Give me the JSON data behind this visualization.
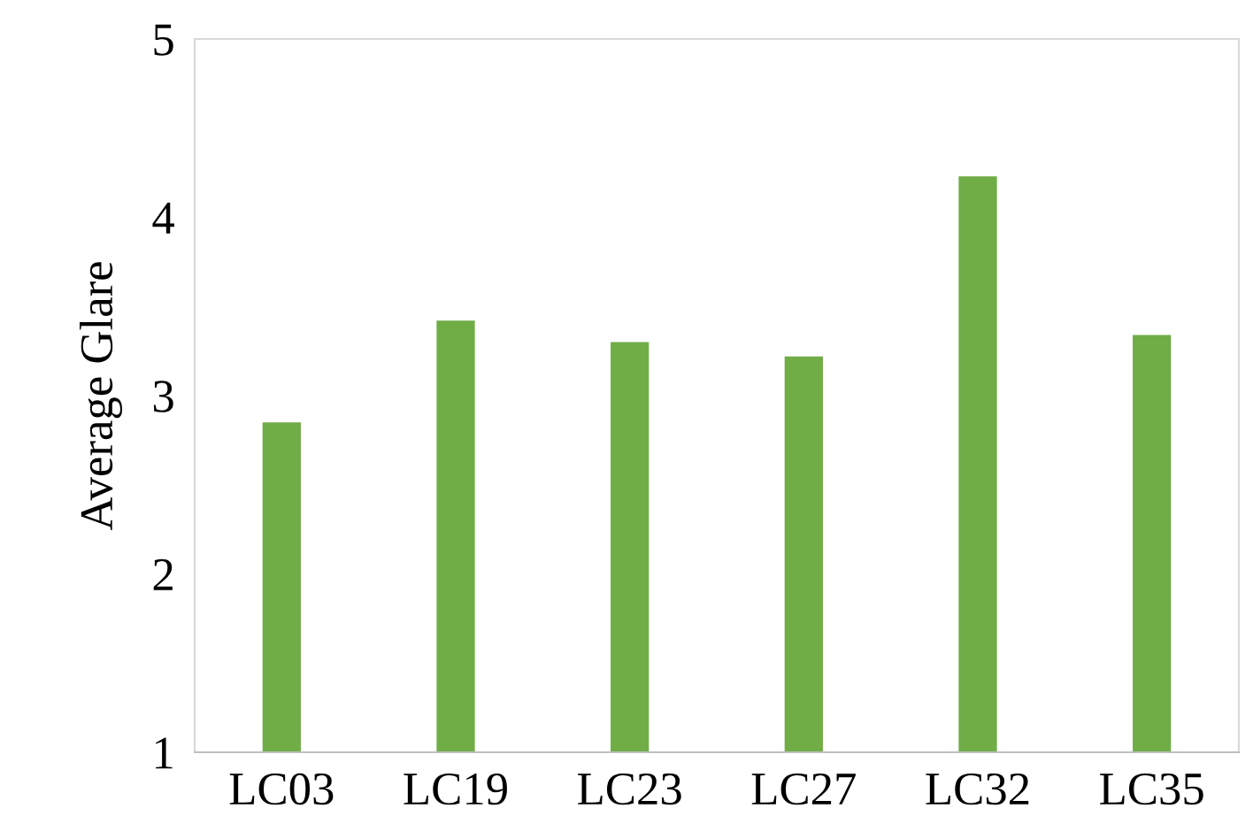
{
  "chart_data": {
    "type": "bar",
    "ylabel": "Average Glare",
    "categories": [
      "LC03",
      "LC19",
      "LC23",
      "LC27",
      "LC32",
      "LC35"
    ],
    "values": [
      2.85,
      3.42,
      3.3,
      3.22,
      4.23,
      3.34
    ],
    "color": "#70ad47",
    "ylim": [
      1,
      5
    ],
    "yticks": [
      1,
      2,
      3,
      4,
      5
    ],
    "grid": false,
    "legend": false
  }
}
